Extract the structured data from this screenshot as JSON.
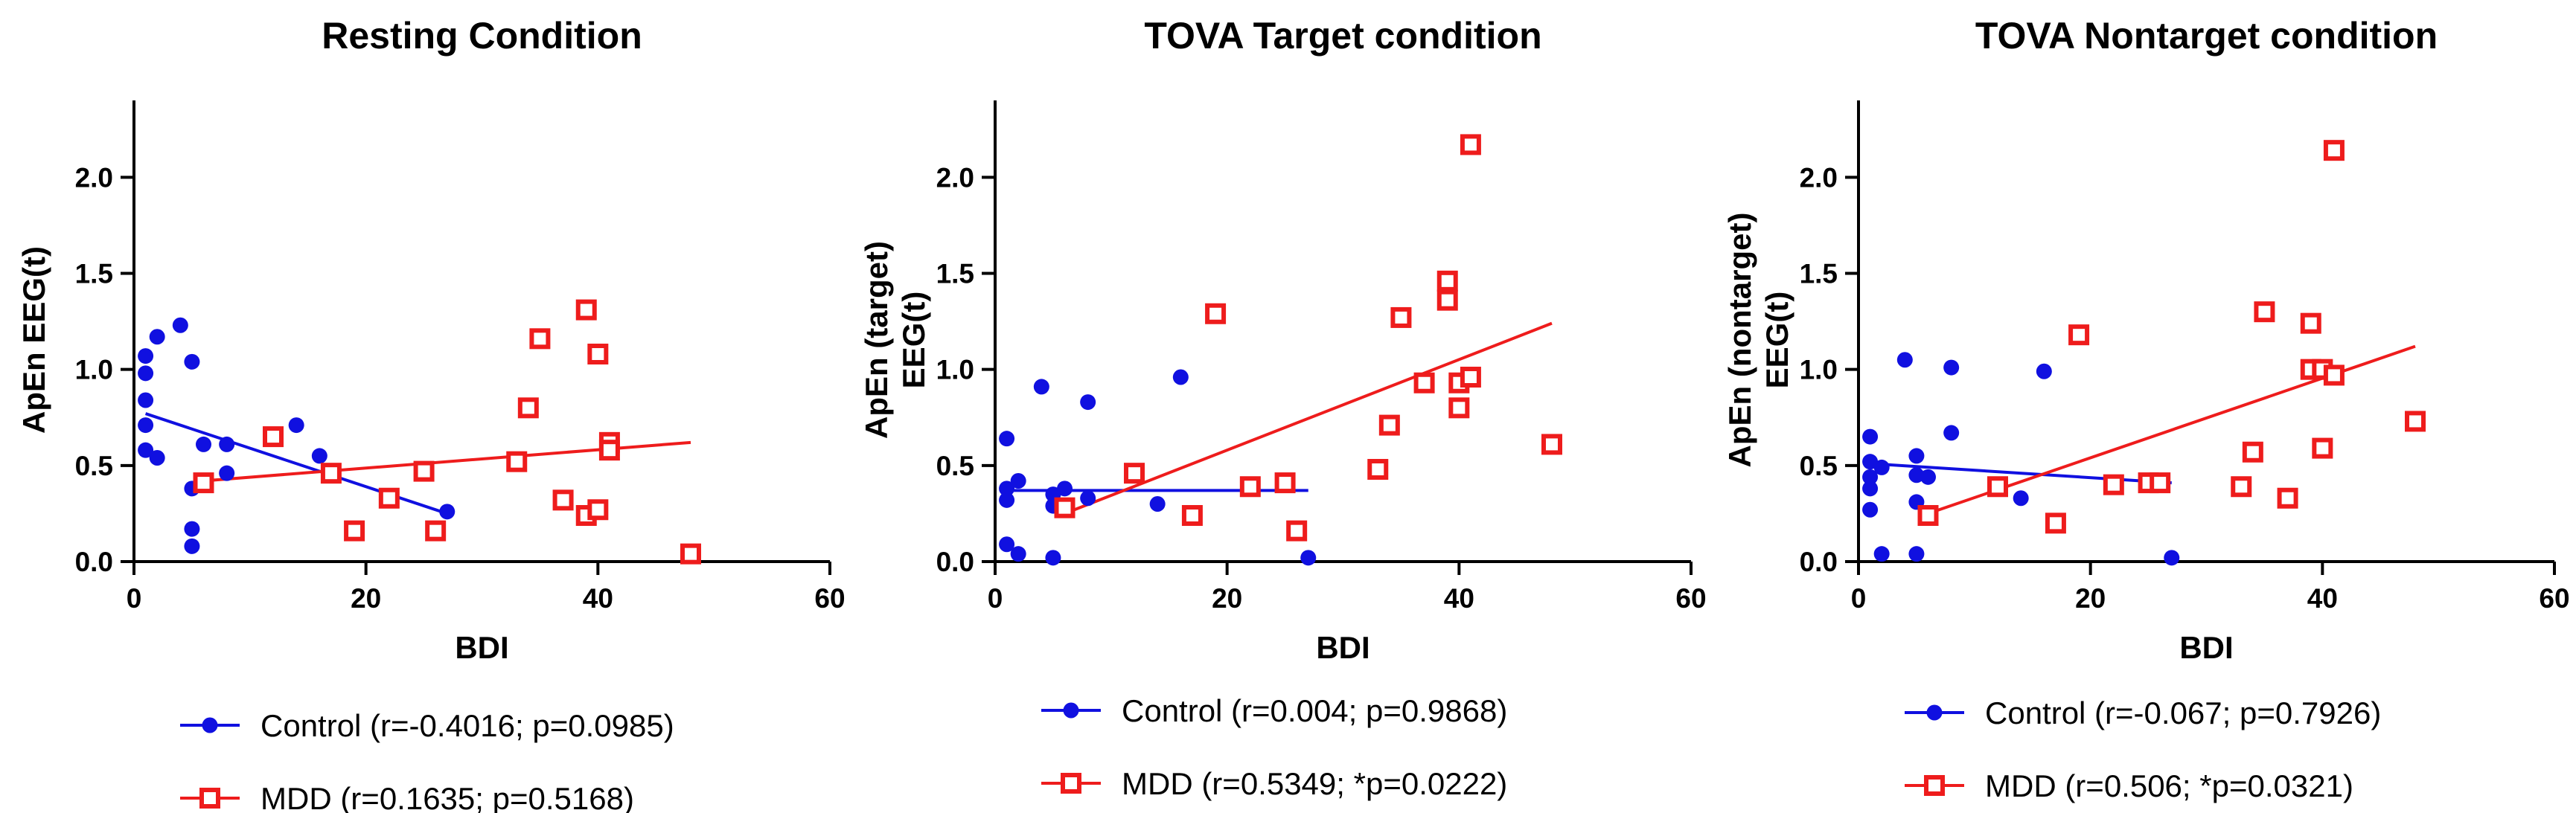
{
  "chart_data": [
    {
      "type": "scatter",
      "title": "Resting Condition",
      "xlabel": "BDI",
      "ylabel": [
        "ApEn EEG(t)"
      ],
      "xlim": [
        0,
        60
      ],
      "ylim": [
        0,
        2.4
      ],
      "xticks": [
        0,
        20,
        40,
        60
      ],
      "yticks": [
        0.0,
        0.5,
        1.0,
        1.5,
        2.0
      ],
      "xtick_labels": [
        "0",
        "20",
        "40",
        "60"
      ],
      "ytick_labels": [
        "0.0",
        "0.5",
        "1.0",
        "1.5",
        "2.0"
      ],
      "series": [
        {
          "name": "Control",
          "legend": "Control (r=-0.4016; p=0.0985)",
          "marker": "filled-circle",
          "color": "#1010e0",
          "points": [
            [
              1,
              1.07
            ],
            [
              1,
              0.98
            ],
            [
              1,
              0.84
            ],
            [
              1,
              0.71
            ],
            [
              1,
              0.58
            ],
            [
              2,
              1.17
            ],
            [
              2,
              0.54
            ],
            [
              4,
              1.23
            ],
            [
              5,
              1.04
            ],
            [
              5,
              0.38
            ],
            [
              5,
              0.17
            ],
            [
              5,
              0.08
            ],
            [
              6,
              0.61
            ],
            [
              8,
              0.61
            ],
            [
              8,
              0.46
            ],
            [
              14,
              0.71
            ],
            [
              16,
              0.55
            ],
            [
              27,
              0.26
            ]
          ],
          "fit": [
            [
              1,
              0.77
            ],
            [
              27,
              0.25
            ]
          ]
        },
        {
          "name": "MDD",
          "legend": "MDD  (r=0.1635; p=0.5168)",
          "marker": "open-square",
          "color": "#ee1c1c",
          "points": [
            [
              6,
              0.41
            ],
            [
              12,
              0.65
            ],
            [
              17,
              0.46
            ],
            [
              19,
              0.16
            ],
            [
              22,
              0.33
            ],
            [
              25,
              0.47
            ],
            [
              26,
              0.16
            ],
            [
              33,
              0.52
            ],
            [
              34,
              0.8
            ],
            [
              35,
              1.16
            ],
            [
              37,
              0.32
            ],
            [
              39,
              1.31
            ],
            [
              39,
              0.24
            ],
            [
              40,
              1.08
            ],
            [
              40,
              0.27
            ],
            [
              41,
              0.62
            ],
            [
              41,
              0.58
            ],
            [
              48,
              0.04
            ]
          ],
          "fit": [
            [
              6,
              0.42
            ],
            [
              48,
              0.62
            ]
          ]
        }
      ]
    },
    {
      "type": "scatter",
      "title": "TOVA Target condition",
      "xlabel": "BDI",
      "ylabel": [
        "ApEn (target)",
        "EEG(t)"
      ],
      "xlim": [
        0,
        60
      ],
      "ylim": [
        0,
        2.4
      ],
      "xticks": [
        0,
        20,
        40,
        60
      ],
      "yticks": [
        0.0,
        0.5,
        1.0,
        1.5,
        2.0
      ],
      "xtick_labels": [
        "0",
        "20",
        "40",
        "60"
      ],
      "ytick_labels": [
        "0.0",
        "0.5",
        "1.0",
        "1.5",
        "2.0"
      ],
      "series": [
        {
          "name": "Control",
          "legend": "Control (r=0.004; p=0.9868)",
          "marker": "filled-circle",
          "color": "#1010e0",
          "points": [
            [
              1,
              0.64
            ],
            [
              1,
              0.38
            ],
            [
              1,
              0.32
            ],
            [
              1,
              0.09
            ],
            [
              2,
              0.42
            ],
            [
              2,
              0.04
            ],
            [
              4,
              0.91
            ],
            [
              5,
              0.35
            ],
            [
              5,
              0.29
            ],
            [
              5,
              0.02
            ],
            [
              6,
              0.38
            ],
            [
              6,
              0.27
            ],
            [
              8,
              0.83
            ],
            [
              8,
              0.33
            ],
            [
              14,
              0.3
            ],
            [
              16,
              0.96
            ],
            [
              27,
              0.02
            ]
          ],
          "fit": [
            [
              1,
              0.37
            ],
            [
              27,
              0.37
            ]
          ]
        },
        {
          "name": "MDD",
          "legend": "MDD  (r=0.5349; *p=0.0222)",
          "marker": "open-square",
          "color": "#ee1c1c",
          "points": [
            [
              6,
              0.28
            ],
            [
              12,
              0.46
            ],
            [
              17,
              0.24
            ],
            [
              19,
              1.29
            ],
            [
              22,
              0.39
            ],
            [
              25,
              0.41
            ],
            [
              26,
              0.16
            ],
            [
              33,
              0.48
            ],
            [
              34,
              0.71
            ],
            [
              35,
              1.27
            ],
            [
              37,
              0.93
            ],
            [
              39,
              1.46
            ],
            [
              39,
              1.36
            ],
            [
              40,
              0.93
            ],
            [
              40,
              0.8
            ],
            [
              41,
              0.96
            ],
            [
              41,
              2.17
            ],
            [
              48,
              0.61
            ]
          ],
          "fit": [
            [
              6,
              0.25
            ],
            [
              48,
              1.24
            ]
          ]
        }
      ]
    },
    {
      "type": "scatter",
      "title": "TOVA Nontarget condition",
      "xlabel": "BDI",
      "ylabel": [
        "ApEn (nontarget)",
        "EEG(t)"
      ],
      "xlim": [
        0,
        60
      ],
      "ylim": [
        0,
        2.4
      ],
      "xticks": [
        0,
        20,
        40,
        60
      ],
      "yticks": [
        0.0,
        0.5,
        1.0,
        1.5,
        2.0
      ],
      "xtick_labels": [
        "0",
        "20",
        "40",
        "60"
      ],
      "ytick_labels": [
        "0.0",
        "0.5",
        "1.0",
        "1.5",
        "2.0"
      ],
      "series": [
        {
          "name": "Control",
          "legend": "Control (r=-0.067; p=0.7926)",
          "marker": "filled-circle",
          "color": "#1010e0",
          "points": [
            [
              1,
              0.65
            ],
            [
              1,
              0.52
            ],
            [
              1,
              0.44
            ],
            [
              1,
              0.38
            ],
            [
              1,
              0.27
            ],
            [
              2,
              0.49
            ],
            [
              2,
              0.04
            ],
            [
              4,
              1.05
            ],
            [
              5,
              0.55
            ],
            [
              5,
              0.45
            ],
            [
              5,
              0.31
            ],
            [
              5,
              0.04
            ],
            [
              6,
              0.44
            ],
            [
              8,
              1.01
            ],
            [
              8,
              0.67
            ],
            [
              14,
              0.33
            ],
            [
              16,
              0.99
            ],
            [
              27,
              0.02
            ]
          ],
          "fit": [
            [
              1,
              0.51
            ],
            [
              27,
              0.41
            ]
          ]
        },
        {
          "name": "MDD",
          "legend": "MDD  (r=0.506; *p=0.0321)",
          "marker": "open-square",
          "color": "#ee1c1c",
          "points": [
            [
              6,
              0.24
            ],
            [
              12,
              0.39
            ],
            [
              17,
              0.2
            ],
            [
              19,
              1.18
            ],
            [
              22,
              0.4
            ],
            [
              25,
              0.41
            ],
            [
              26,
              0.41
            ],
            [
              33,
              0.39
            ],
            [
              34,
              0.57
            ],
            [
              35,
              1.3
            ],
            [
              37,
              0.33
            ],
            [
              39,
              1.24
            ],
            [
              39,
              1.0
            ],
            [
              40,
              1.0
            ],
            [
              40,
              0.59
            ],
            [
              41,
              0.97
            ],
            [
              41,
              2.14
            ],
            [
              48,
              0.73
            ]
          ],
          "fit": [
            [
              6,
              0.25
            ],
            [
              48,
              1.12
            ]
          ]
        }
      ]
    }
  ]
}
